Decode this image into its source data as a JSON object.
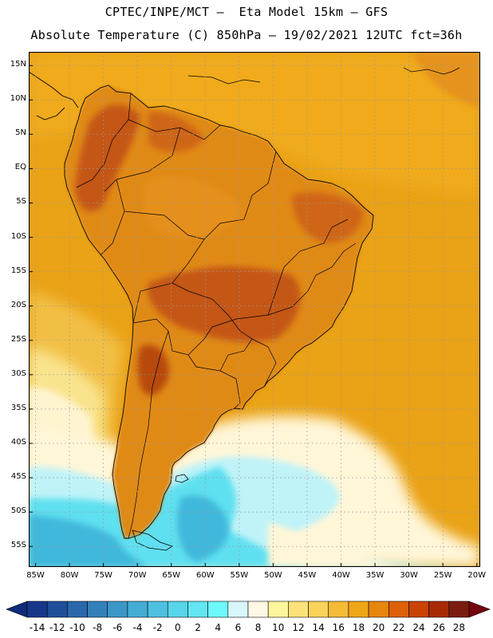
{
  "header": {
    "line1": "CPTEC/INPE/MCT –  Eta Model 15km – GFS",
    "line2": "Absolute Temperature (C) 850hPa – 19/02/2021 12UTC fct=36h"
  },
  "map": {
    "lat_labels": [
      "15N",
      "10N",
      "5N",
      "EQ",
      "5S",
      "10S",
      "15S",
      "20S",
      "25S",
      "30S",
      "35S",
      "40S",
      "45S",
      "50S",
      "55S"
    ],
    "lon_labels": [
      "85W",
      "80W",
      "75W",
      "70W",
      "65W",
      "60W",
      "55W",
      "50W",
      "45W",
      "40W",
      "35W",
      "30W",
      "25W",
      "20W"
    ],
    "lat_values": [
      15,
      10,
      5,
      0,
      -5,
      -10,
      -15,
      -20,
      -25,
      -30,
      -35,
      -40,
      -45,
      -50,
      -55
    ],
    "lon_values": [
      -85,
      -80,
      -75,
      -70,
      -65,
      -60,
      -55,
      -50,
      -45,
      -40,
      -35,
      -30,
      -25,
      -20
    ],
    "extent": {
      "lon_min": -86,
      "lon_max": -19.5,
      "lat_min": -58,
      "lat_max": 17
    },
    "grid": true,
    "colors": {
      "ocean_warm": "#eaa216",
      "ocean_tropic": "#f0aa1e",
      "land_warm": "#e08a18",
      "land_hot": "#cf6515",
      "land_very_hot": "#c45614",
      "pale_yellow": "#f8e38a",
      "cream": "#fff6d8",
      "light_cyan": "#bff3f8",
      "cyan": "#5fe0f0",
      "blue": "#41b8db",
      "coast": "#000000"
    }
  },
  "colorbar": {
    "labels": [
      "-14",
      "-12",
      "-10",
      "-8",
      "-6",
      "-4",
      "-2",
      "0",
      "2",
      "4",
      "6",
      "8",
      "10",
      "12",
      "14",
      "16",
      "18",
      "20",
      "22",
      "24",
      "26",
      "28"
    ],
    "colors": [
      "#18378b",
      "#1f4e9a",
      "#2a67ab",
      "#3380bb",
      "#3b97c8",
      "#45acd4",
      "#4fc0df",
      "#58d5ea",
      "#62e6f2",
      "#6ff8fb",
      "#d9f6fa",
      "#fff8e4",
      "#fff59c",
      "#fde27a",
      "#fbd25a",
      "#f5bb36",
      "#efa617",
      "#e7860d",
      "#dc6008",
      "#c94305",
      "#a82a05",
      "#7a1d10"
    ],
    "under_color": "#0f2a78",
    "over_color": "#74050f"
  }
}
